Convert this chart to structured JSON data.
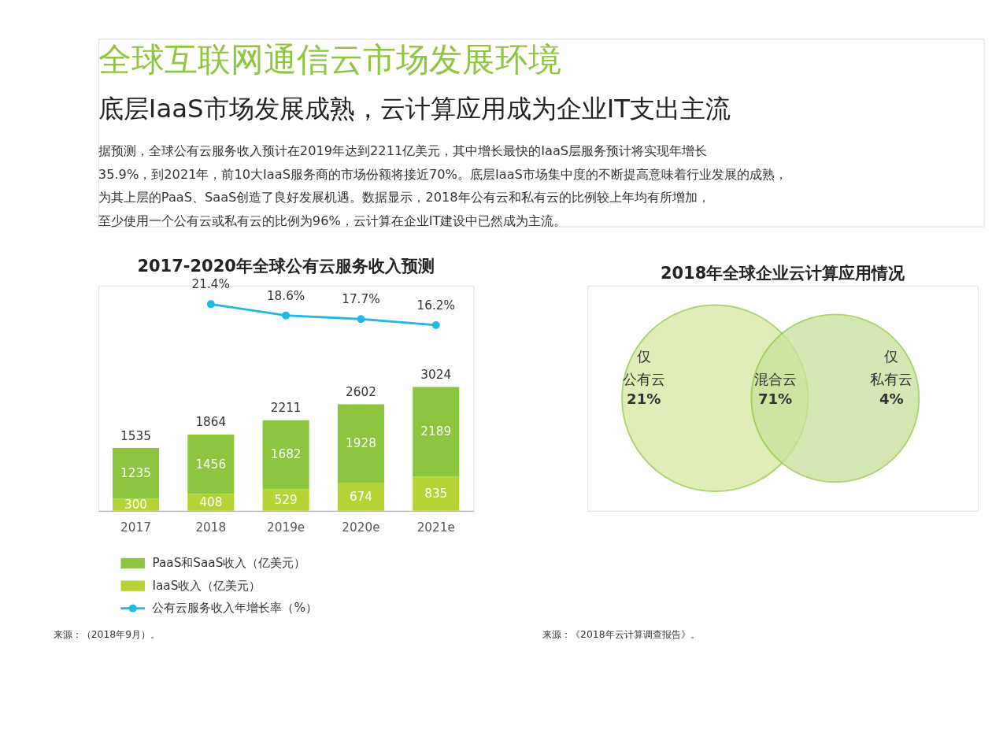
{
  "chart_data": [
    {
      "type": "other",
      "title": "全球互联网通信云市场发展环境",
      "subtitle": "底层IaaS市场发展成熟，云计算应用成为企业IT支出主流",
      "annotations": [
        "据预测，全球公有云服务收入预计在2019年达到2211亿美元，其中增长最快的IaaS层服务预计将实现年增长",
        "35.9%，到2021年，前10大IaaS服务商的市场份额将接近70%。底层IaaS市场集中度的不断提高意味着行业发展的成熟，",
        "为其上层的PaaS、SaaS创造了良好发展机遇。数据显示，2018年公有云和私有云的比例较上年均有所增加，",
        "至少使用一个公有云或私有云的比例为96%，云计算在企业IT建设中已然成为主流。"
      ]
    },
    {
      "type": "bar",
      "stacked": true,
      "title": "2017-2020年全球公有云服务收入预测",
      "categories": [
        "2017",
        "2018",
        "2019e",
        "2020e",
        "2021e"
      ],
      "series": [
        {
          "name": "IaaS收入（亿美元）",
          "color": "#b5d334",
          "values": [
            300,
            408,
            529,
            674,
            835
          ]
        },
        {
          "name": "PaaS和SaaS收入（亿美元）",
          "color": "#8cc63e",
          "values": [
            1235,
            1456,
            1682,
            1928,
            2189
          ]
        },
        {
          "name": "公有云服务收入年增长率（%）",
          "type": "line",
          "axis": "y2",
          "color": "#22b8e6",
          "values": [
            null,
            21.4,
            18.6,
            17.7,
            16.2
          ],
          "value_labels": [
            null,
            "21.4%",
            "18.6%",
            "17.7%",
            "16.2%"
          ]
        }
      ],
      "ylim": [
        0,
        5500
      ],
      "y2lim": [
        -30,
        26
      ],
      "data_labels": true,
      "totals": [
        "1535",
        "1864",
        "2211",
        "2602",
        "3024"
      ],
      "legend": "bottom left",
      "marker": "circle",
      "tick_labels": "x",
      "annotations": [
        "来源：（2018年9月）。"
      ]
    },
    {
      "type": "other",
      "title": "2018年全球企业云计算应用情况",
      "categories": [
        "仅公有云",
        "混合云",
        "仅私有云"
      ],
      "value_labels": [
        "21%",
        "71%",
        "4%"
      ],
      "colors": [
        "#d6e89f",
        "#8dc63f",
        "#c8e19b"
      ],
      "annotations": [
        "来源：《2018年云计算调查报告》。"
      ]
    }
  ]
}
